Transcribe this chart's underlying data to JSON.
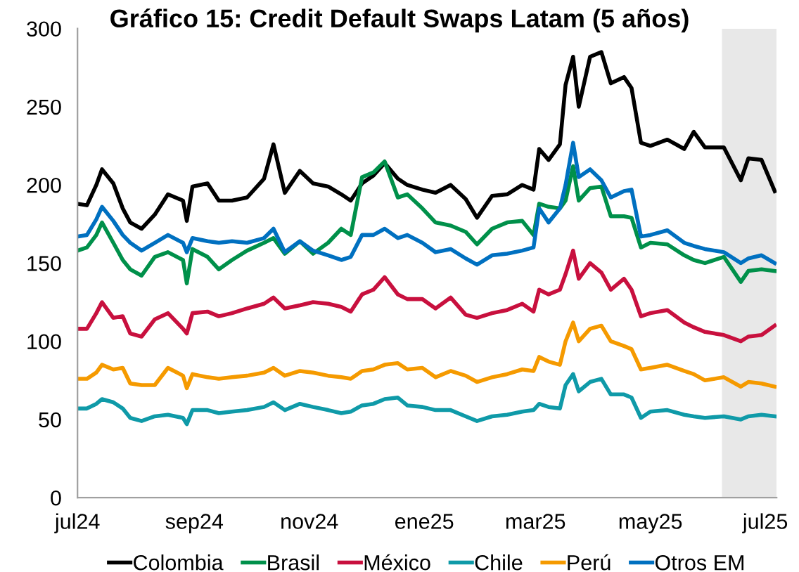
{
  "chart_data": {
    "type": "line",
    "title": "Gráfico 15: Credit Default Swaps Latam (5 años)",
    "x": [
      "2024-07-01",
      "2024-07-06",
      "2024-07-11",
      "2024-07-14",
      "2024-07-20",
      "2024-07-25",
      "2024-07-29",
      "2024-08-04",
      "2024-08-11",
      "2024-08-18",
      "2024-08-26",
      "2024-08-28",
      "2024-08-31",
      "2024-09-08",
      "2024-09-14",
      "2024-09-21",
      "2024-09-29",
      "2024-10-08",
      "2024-10-13",
      "2024-10-19",
      "2024-10-27",
      "2024-11-03",
      "2024-11-11",
      "2024-11-18",
      "2024-11-23",
      "2024-11-29",
      "2024-12-05",
      "2024-12-11",
      "2024-12-18",
      "2024-12-23",
      "2024-12-31",
      "2025-01-07",
      "2025-01-15",
      "2025-01-23",
      "2025-01-29",
      "2025-02-06",
      "2025-02-14",
      "2025-02-22",
      "2025-02-28",
      "2025-03-03",
      "2025-03-08",
      "2025-03-14",
      "2025-03-17",
      "2025-03-21",
      "2025-03-24",
      "2025-03-30",
      "2025-04-05",
      "2025-04-10",
      "2025-04-17",
      "2025-04-21",
      "2025-04-26",
      "2025-05-01",
      "2025-05-10",
      "2025-05-19",
      "2025-05-24",
      "2025-05-30",
      "2025-06-09",
      "2025-06-18",
      "2025-06-22",
      "2025-06-29",
      "2025-07-06"
    ],
    "series": [
      {
        "name": "Colombia",
        "color": "#000000",
        "values": [
          188,
          187,
          200,
          210,
          201,
          185,
          176,
          172,
          181,
          194,
          190,
          177,
          199,
          201,
          190,
          190,
          192,
          204,
          226,
          195,
          209,
          201,
          199,
          194,
          190,
          201,
          206,
          214,
          204,
          200,
          197,
          195,
          200,
          191,
          179,
          193,
          194,
          200,
          197,
          223,
          216,
          226,
          264,
          282,
          250,
          282,
          285,
          265,
          269,
          262,
          227,
          225,
          229,
          223,
          234,
          224,
          224,
          203,
          217,
          216,
          196
        ]
      },
      {
        "name": "Brasil",
        "color": "#00904a",
        "values": [
          158,
          160,
          168,
          176,
          163,
          152,
          146,
          142,
          154,
          157,
          152,
          137,
          159,
          154,
          146,
          152,
          158,
          163,
          166,
          156,
          164,
          156,
          163,
          172,
          168,
          205,
          208,
          215,
          192,
          194,
          185,
          176,
          174,
          170,
          162,
          172,
          176,
          177,
          168,
          188,
          186,
          185,
          190,
          212,
          190,
          198,
          199,
          180,
          180,
          179,
          160,
          163,
          162,
          155,
          152,
          150,
          154,
          138,
          145,
          146,
          145
        ]
      },
      {
        "name": "México",
        "color": "#c8103e",
        "values": [
          108,
          108,
          118,
          125,
          115,
          116,
          105,
          103,
          114,
          118,
          108,
          105,
          118,
          119,
          116,
          118,
          121,
          124,
          128,
          121,
          123,
          125,
          124,
          122,
          119,
          130,
          133,
          141,
          130,
          127,
          127,
          121,
          128,
          117,
          115,
          118,
          120,
          124,
          119,
          133,
          130,
          133,
          143,
          158,
          140,
          150,
          144,
          133,
          140,
          133,
          116,
          118,
          120,
          112,
          109,
          106,
          104,
          100,
          103,
          104,
          110
        ]
      },
      {
        "name": "Chile",
        "color": "#0f9aa8",
        "values": [
          57,
          57,
          60,
          63,
          61,
          57,
          51,
          49,
          52,
          53,
          51,
          47,
          56,
          56,
          54,
          55,
          56,
          58,
          61,
          56,
          60,
          58,
          56,
          54,
          55,
          59,
          60,
          63,
          64,
          59,
          58,
          56,
          56,
          52,
          49,
          52,
          53,
          55,
          56,
          60,
          58,
          57,
          72,
          79,
          68,
          74,
          76,
          66,
          66,
          64,
          51,
          55,
          56,
          53,
          52,
          51,
          52,
          50,
          52,
          53,
          52
        ]
      },
      {
        "name": "Perú",
        "color": "#f59a00",
        "values": [
          76,
          76,
          80,
          85,
          82,
          83,
          73,
          72,
          72,
          83,
          78,
          70,
          79,
          77,
          76,
          77,
          78,
          80,
          83,
          78,
          81,
          80,
          78,
          77,
          76,
          81,
          82,
          85,
          86,
          82,
          83,
          77,
          81,
          78,
          74,
          77,
          79,
          82,
          81,
          90,
          87,
          85,
          100,
          112,
          100,
          108,
          110,
          100,
          97,
          95,
          82,
          83,
          85,
          81,
          79,
          75,
          77,
          71,
          74,
          73,
          71
        ]
      },
      {
        "name": "Otros EM",
        "color": "#0070c0",
        "values": [
          167,
          168,
          178,
          186,
          177,
          168,
          163,
          158,
          163,
          168,
          163,
          157,
          166,
          164,
          163,
          164,
          163,
          166,
          172,
          157,
          164,
          158,
          155,
          152,
          154,
          168,
          168,
          172,
          166,
          168,
          163,
          157,
          159,
          153,
          149,
          155,
          156,
          158,
          160,
          185,
          176,
          185,
          200,
          227,
          205,
          210,
          203,
          192,
          196,
          197,
          167,
          168,
          171,
          163,
          161,
          159,
          157,
          150,
          153,
          155,
          150
        ]
      }
    ],
    "xlim": [
      "2024-07-01",
      "2025-07-07"
    ],
    "xticks": [
      {
        "value": "2024-07-01",
        "label": "jul24"
      },
      {
        "value": "2024-09-01",
        "label": "sep24"
      },
      {
        "value": "2024-11-01",
        "label": "nov24"
      },
      {
        "value": "2025-01-01",
        "label": "ene25"
      },
      {
        "value": "2025-03-01",
        "label": "mar25"
      },
      {
        "value": "2025-05-01",
        "label": "may25"
      },
      {
        "value": "2025-07-01",
        "label": "jul25"
      }
    ],
    "ylim": [
      0,
      300
    ],
    "yticks": [
      0,
      50,
      100,
      150,
      200,
      250,
      300
    ],
    "bands": [
      {
        "axis": "x",
        "from": "2025-06-08",
        "to": "2025-07-07",
        "color": "#e8e8e8"
      }
    ],
    "grid": false,
    "legend": "bottom",
    "marker": "none",
    "line_style": "solid"
  }
}
